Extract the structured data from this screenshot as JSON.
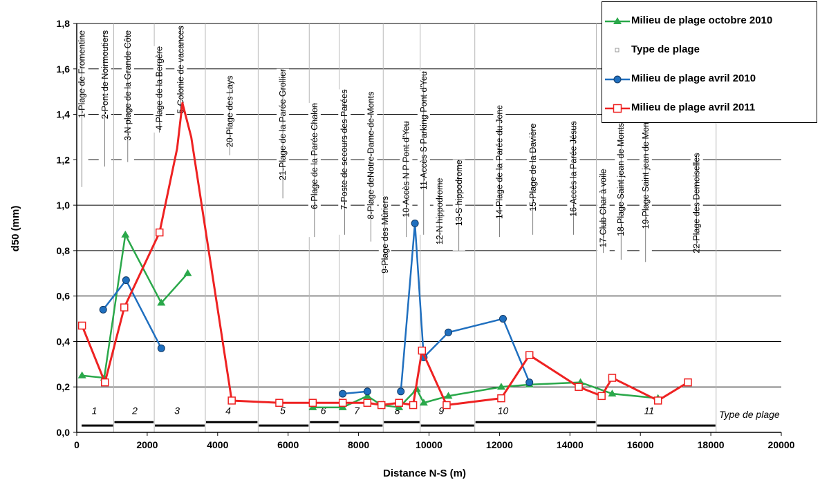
{
  "chart_data": {
    "type": "line",
    "xlabel": "Distance N-S (m)",
    "ylabel": "d50 (mm)",
    "xlim": [
      0,
      20000
    ],
    "ylim": [
      0,
      1.8
    ],
    "x_ticks": [
      0,
      2000,
      4000,
      6000,
      8000,
      10000,
      12000,
      14000,
      16000,
      18000,
      20000
    ],
    "y_ticks": [
      0.0,
      0.2,
      0.4,
      0.6,
      0.8,
      1.0,
      1.2,
      1.4,
      1.6,
      1.8
    ],
    "x_tick_labels": [
      "0",
      "2000",
      "4000",
      "6000",
      "8000",
      "10000",
      "12000",
      "14000",
      "16000",
      "18000",
      "20000"
    ],
    "y_tick_labels": [
      "0,0",
      "0,2",
      "0,4",
      "0,6",
      "0,8",
      "1,0",
      "1,2",
      "1,4",
      "1,6",
      "1,8"
    ],
    "grid": "horizontal",
    "legend_position": "top-right",
    "series": [
      {
        "name": "Milieu de plage octobre 2010",
        "color": "#2aa84a",
        "marker": "triangle",
        "segments": [
          [
            [
              150,
              0.25
            ],
            [
              780,
              0.24
            ],
            [
              1380,
              0.87
            ],
            [
              2400,
              0.57
            ],
            [
              3150,
              0.7
            ]
          ],
          [
            [
              6700,
              0.11
            ],
            [
              7550,
              0.11
            ],
            [
              8250,
              0.16
            ],
            [
              8650,
              0.12
            ],
            [
              9150,
              0.11
            ],
            [
              9650,
              0.19
            ],
            [
              9850,
              0.13
            ],
            [
              10550,
              0.16
            ],
            [
              12050,
              0.2
            ],
            [
              12850,
              0.21
            ],
            [
              14300,
              0.22
            ],
            [
              15200,
              0.17
            ],
            [
              16500,
              0.15
            ]
          ]
        ]
      },
      {
        "name": "Type de plage",
        "color": "#999999",
        "marker": "small-square"
      },
      {
        "name": "Milieu de plage avril 2010",
        "color": "#1f6fbf",
        "marker": "circle",
        "segments": [
          [
            [
              750,
              0.54
            ],
            [
              1400,
              0.67
            ],
            [
              2400,
              0.37
            ]
          ],
          [
            [
              7550,
              0.17
            ],
            [
              8250,
              0.18
            ]
          ],
          [
            [
              9200,
              0.18
            ],
            [
              9600,
              0.92
            ],
            [
              9850,
              0.33
            ],
            [
              10550,
              0.44
            ],
            [
              12100,
              0.5
            ],
            [
              12850,
              0.22
            ]
          ]
        ]
      },
      {
        "name": "Milieu de plage avril 2011",
        "color": "#ee2222",
        "marker": "open-square",
        "segments": [
          [
            [
              150,
              0.47
            ],
            [
              800,
              0.22
            ],
            [
              1350,
              0.55
            ],
            [
              2350,
              0.88
            ],
            [
              2850,
              1.25
            ],
            [
              3000,
              1.45
            ],
            [
              3250,
              1.3
            ],
            [
              4400,
              0.14
            ],
            [
              5750,
              0.13
            ],
            [
              6700,
              0.13
            ],
            [
              7550,
              0.13
            ],
            [
              8250,
              0.13
            ],
            [
              8650,
              0.12
            ],
            [
              9150,
              0.13
            ],
            [
              9550,
              0.12
            ],
            [
              9800,
              0.36
            ],
            [
              10500,
              0.12
            ],
            [
              12050,
              0.15
            ],
            [
              12850,
              0.34
            ],
            [
              14250,
              0.2
            ],
            [
              14900,
              0.16
            ],
            [
              15200,
              0.24
            ],
            [
              16500,
              0.14
            ],
            [
              17350,
              0.22
            ]
          ]
        ]
      }
    ],
    "site_labels": [
      {
        "text": "1-Plage  de Fromentine",
        "x": 150,
        "top": 1.77,
        "bottom": 1.08
      },
      {
        "text": "2-Pont de Noirmoutiers",
        "x": 800,
        "top": 1.77,
        "bottom": 1.17
      },
      {
        "text": "3-N plage  de la Grande  Côte",
        "x": 1450,
        "top": 1.77,
        "bottom": 1.19
      },
      {
        "text": "4-Plage  de la Bergère",
        "x": 2350,
        "top": 1.7,
        "bottom": 1.32
      },
      {
        "text": "5-Colonie  de vacances",
        "x": 2950,
        "top": 1.79,
        "bottom": 1.37
      },
      {
        "text": "20-Plage des Lays",
        "x": 4350,
        "top": 1.57,
        "bottom": 1.22
      },
      {
        "text": "21-Plage de la Parée Grollier",
        "x": 5850,
        "top": 1.6,
        "bottom": 1.03
      },
      {
        "text": "6-Plage  de la Parée  Chalon",
        "x": 6750,
        "top": 1.45,
        "bottom": 0.86
      },
      {
        "text": "7-Poste de secours  des  Parées",
        "x": 7600,
        "top": 1.51,
        "bottom": 0.87
      },
      {
        "text": "8-Plage  deNotre-Dame-de-Monts",
        "x": 8350,
        "top": 1.5,
        "bottom": 0.84
      },
      {
        "text": "9-Plage  des Mûriers",
        "x": 8750,
        "top": 1.04,
        "bottom": 0.74
      },
      {
        "text": "10-Accès N P Pont d'Yeu",
        "x": 9350,
        "top": 1.37,
        "bottom": 0.86
      },
      {
        "text": "11-Accès S Parking Pont d'Yeu",
        "x": 9850,
        "top": 1.59,
        "bottom": 0.87
      },
      {
        "text": "12-N  hippodrome",
        "x": 10300,
        "top": 1.12,
        "bottom": 0.83
      },
      {
        "text": "13-S  hippodrome",
        "x": 10850,
        "top": 1.2,
        "bottom": 0.8
      },
      {
        "text": "14-Plage  de la Parée du Jonc",
        "x": 12000,
        "top": 1.44,
        "bottom": 0.86
      },
      {
        "text": "15-Plage  de la Davière",
        "x": 12950,
        "top": 1.36,
        "bottom": 0.87
      },
      {
        "text": "16-Accès  la Parée  Jésus",
        "x": 14100,
        "top": 1.37,
        "bottom": 0.87
      },
      {
        "text": "17-Club  Char à voile",
        "x": 14950,
        "top": 1.16,
        "bottom": 0.79
      },
      {
        "text": "18-Plage  Saint jean  de  Monts N",
        "x": 15450,
        "top": 1.4,
        "bottom": 0.76
      },
      {
        "text": "19-Plage  Saint jean  de Monts S",
        "x": 16150,
        "top": 1.43,
        "bottom": 0.75
      },
      {
        "text": "22-Plage des  Demoiselles",
        "x": 17600,
        "top": 1.23,
        "bottom": 0.81
      }
    ],
    "zone_boundaries": [
      1050,
      2200,
      3650,
      5150,
      6600,
      7450,
      8700,
      9750,
      11300,
      14750,
      18150
    ],
    "zone_labels": [
      {
        "text": "1",
        "x": 500
      },
      {
        "text": "2",
        "x": 1650
      },
      {
        "text": "3",
        "x": 2850
      },
      {
        "text": "4",
        "x": 4300
      },
      {
        "text": "5",
        "x": 5850
      },
      {
        "text": "6",
        "x": 7000
      },
      {
        "text": "7",
        "x": 7950
      },
      {
        "text": "8",
        "x": 9100
      },
      {
        "text": "9",
        "x": 10350
      },
      {
        "text": "10",
        "x": 12100
      },
      {
        "text": "11",
        "x": 16250
      }
    ],
    "type_de_plage_label": "Type de plage"
  }
}
